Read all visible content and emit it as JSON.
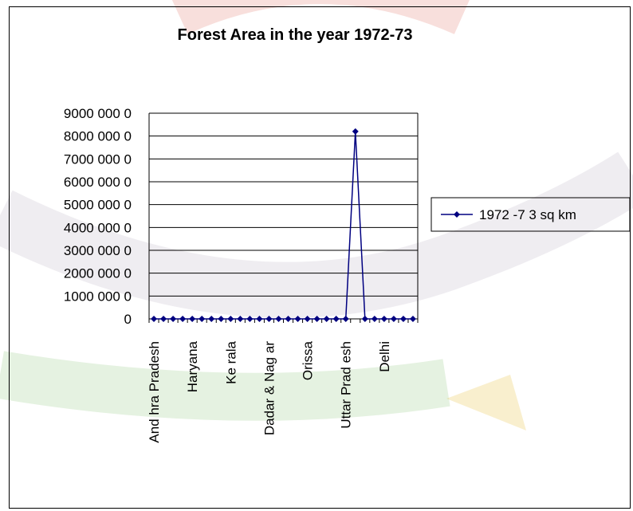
{
  "chart_data": {
    "type": "line",
    "title": "Forest Area in the year 1972-73",
    "xlabel": "",
    "ylabel": "",
    "ylim": [
      0,
      90000000
    ],
    "yticks": [
      0,
      10000000,
      20000000,
      30000000,
      40000000,
      50000000,
      60000000,
      70000000,
      80000000,
      90000000
    ],
    "ytick_labels": [
      "0",
      "1000 000 0",
      "2000 000 0",
      "3000 000 0",
      "4000 000 0",
      "5000 000 0",
      "6000 000 0",
      "7000 000 0",
      "8000 000 0",
      "9000 000 0"
    ],
    "visible_category_labels": [
      "And hra Pradesh",
      "Haryana",
      "Ke rala",
      "Dadar & Nag ar",
      "Orissa",
      "Uttar Prad esh",
      "Delhi"
    ],
    "point_count": 28,
    "label_every": 4,
    "peak_index": 21,
    "series": [
      {
        "name": "1972 -7 3 sq km",
        "color": "#000080",
        "values": [
          0,
          0,
          0,
          0,
          0,
          0,
          0,
          0,
          0,
          0,
          0,
          0,
          0,
          0,
          0,
          0,
          0,
          0,
          0,
          0,
          0,
          82000000,
          0,
          0,
          0,
          0,
          0,
          0
        ]
      }
    ],
    "grid": true,
    "legend_position": "right"
  },
  "colors": {
    "line": "#000080",
    "grid": "#000000",
    "watermark_red": "#d94b3c",
    "watermark_green": "#7bbf6a",
    "watermark_yellow": "#e9c13a"
  }
}
